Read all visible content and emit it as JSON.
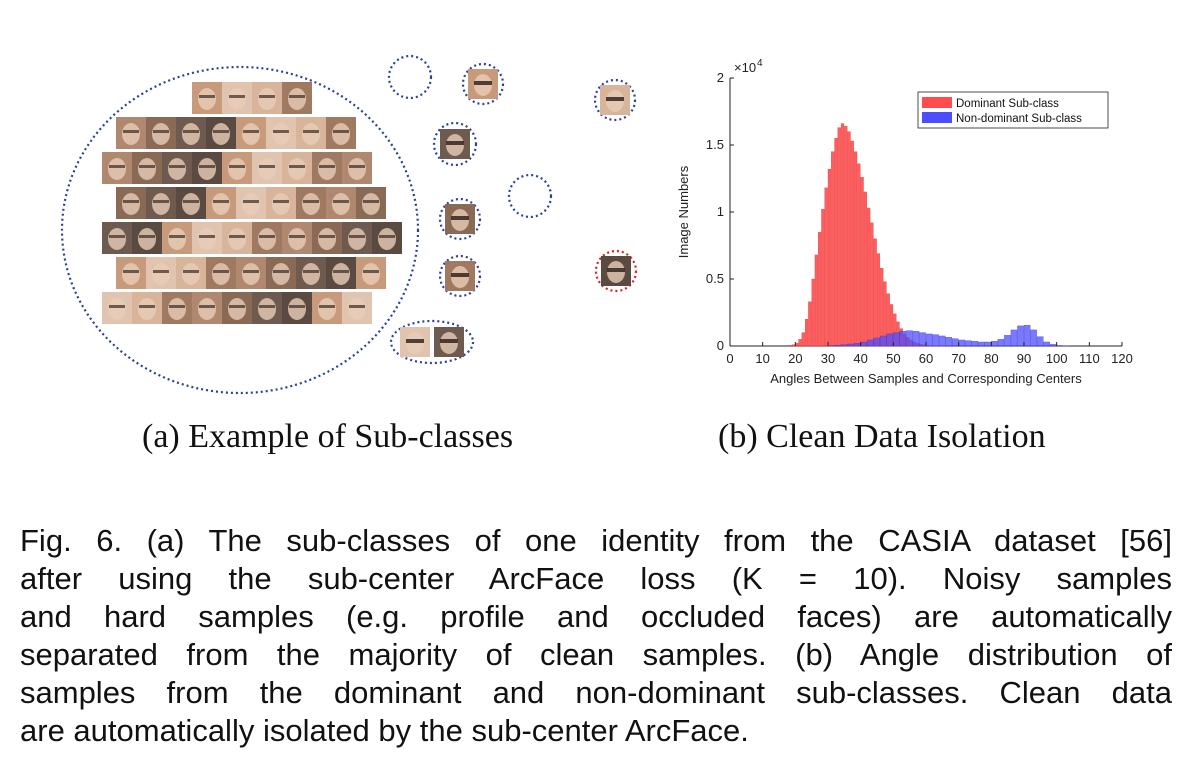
{
  "subfigures": {
    "a_caption": "(a)  Example of Sub-classes",
    "b_caption": "(b)  Clean Data Isolation"
  },
  "caption": {
    "lines": [
      "Fig. 6.  (a) The sub-classes of one identity from the CASIA dataset [56]",
      "after using the sub-center ArcFace loss (K = 10). Noisy samples",
      "and hard samples (e.g. profile and occluded faces) are automatically",
      "separated from the majority of clean samples. (b) Angle distribution of",
      "samples from the dominant and non-dominant sub-classes. Clean data",
      "are automatically isolated by the sub-center ArcFace."
    ]
  },
  "diagram": {
    "dominant_face_count": 58,
    "subclasses": [
      {
        "faces": 1,
        "border": "blue"
      },
      {
        "faces": 0,
        "border": "blue"
      },
      {
        "faces": 1,
        "border": "blue"
      },
      {
        "faces": 1,
        "border": "blue"
      },
      {
        "faces": 0,
        "border": "blue"
      },
      {
        "faces": 1,
        "border": "blue"
      },
      {
        "faces": 1,
        "border": "blue"
      },
      {
        "faces": 2,
        "border": "blue"
      },
      {
        "faces": 1,
        "border": "blue"
      },
      {
        "faces": 1,
        "border": "red"
      }
    ],
    "colors": {
      "blue": "#2b3f9e",
      "red": "#d62020"
    }
  },
  "chart_data": {
    "type": "bar",
    "title": "",
    "xlabel": "Angles Between Samples and Corresponding Centers",
    "ylabel": "Image Numbers",
    "y_exponent_label": "×10",
    "y_exponent_power": "4",
    "xlim": [
      0,
      120
    ],
    "ylim": [
      0,
      2
    ],
    "xticks": [
      "0",
      "10",
      "20",
      "30",
      "40",
      "50",
      "60",
      "70",
      "80",
      "90",
      "100",
      "110",
      "120"
    ],
    "yticks": [
      "0",
      "0.5",
      "1",
      "1.5",
      "2"
    ],
    "legend_position": "top-right",
    "series": [
      {
        "name": "Dominant Sub-class",
        "color": "#ff4d4d",
        "x": [
          18,
          19,
          20,
          21,
          22,
          23,
          24,
          25,
          26,
          27,
          28,
          29,
          30,
          31,
          32,
          33,
          34,
          35,
          36,
          37,
          38,
          39,
          40,
          41,
          42,
          43,
          44,
          45,
          46,
          47,
          48,
          49,
          50,
          51,
          52,
          53,
          54,
          55,
          56,
          57,
          58,
          59,
          60,
          61,
          62,
          63,
          64,
          65
        ],
        "values": [
          0.005,
          0.01,
          0.02,
          0.05,
          0.1,
          0.2,
          0.33,
          0.5,
          0.68,
          0.85,
          1.02,
          1.18,
          1.32,
          1.45,
          1.55,
          1.63,
          1.66,
          1.64,
          1.6,
          1.53,
          1.45,
          1.36,
          1.26,
          1.15,
          1.03,
          0.92,
          0.8,
          0.69,
          0.58,
          0.48,
          0.39,
          0.31,
          0.24,
          0.18,
          0.13,
          0.09,
          0.065,
          0.045,
          0.03,
          0.02,
          0.012,
          0.008,
          0.005,
          0.003,
          0.002,
          0.001,
          0.0005,
          0.0002
        ]
      },
      {
        "name": "Non-dominant Sub-class",
        "color": "#4d4dff",
        "x": [
          30,
          32,
          34,
          36,
          38,
          40,
          42,
          44,
          46,
          48,
          50,
          52,
          54,
          56,
          58,
          60,
          62,
          64,
          66,
          68,
          70,
          72,
          74,
          76,
          78,
          80,
          82,
          84,
          86,
          88,
          90,
          92,
          94,
          96,
          98,
          100,
          102
        ],
        "values": [
          0.002,
          0.005,
          0.01,
          0.015,
          0.02,
          0.03,
          0.045,
          0.06,
          0.075,
          0.09,
          0.1,
          0.11,
          0.115,
          0.11,
          0.1,
          0.09,
          0.085,
          0.075,
          0.065,
          0.055,
          0.045,
          0.04,
          0.035,
          0.03,
          0.03,
          0.035,
          0.05,
          0.08,
          0.12,
          0.15,
          0.155,
          0.12,
          0.07,
          0.03,
          0.012,
          0.004,
          0.001
        ]
      }
    ]
  }
}
